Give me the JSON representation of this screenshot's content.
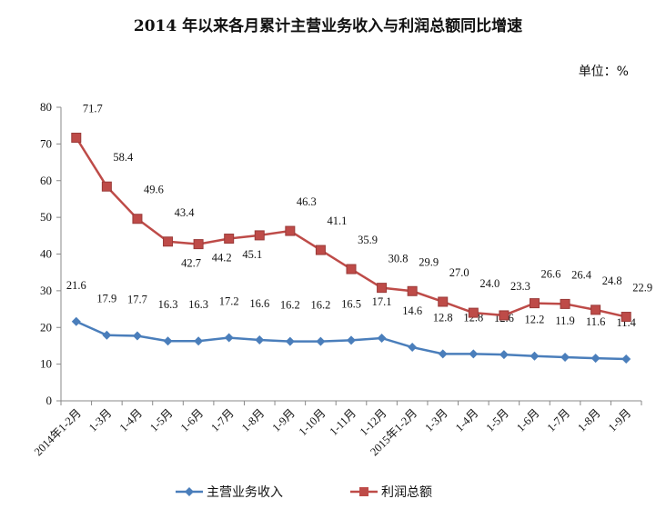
{
  "chart_data": {
    "type": "line",
    "title": "2014 年以来各月累计主营业务收入与利润总额同比增速",
    "unit_label": "单位：%",
    "categories": [
      "2014年1-2月",
      "1-3月",
      "1-4月",
      "1-5月",
      "1-6月",
      "1-7月",
      "1-8月",
      "1-9月",
      "1-10月",
      "1-11月",
      "1-12月",
      "2015年1-2月",
      "1-3月",
      "1-4月",
      "1-5月",
      "1-6月",
      "1-7月",
      "1-8月",
      "1-9月"
    ],
    "ylim": [
      0,
      80
    ],
    "yticks": [
      0,
      10,
      20,
      30,
      40,
      50,
      60,
      70,
      80
    ],
    "grid": false,
    "legend_position": "bottom",
    "series": [
      {
        "name": "主营业务收入",
        "color": "#4a7ebb",
        "marker": "diamond",
        "values": [
          21.6,
          17.9,
          17.7,
          16.3,
          16.3,
          17.2,
          16.6,
          16.2,
          16.2,
          16.5,
          17.1,
          14.6,
          12.8,
          12.8,
          12.6,
          12.2,
          11.9,
          11.6,
          11.4
        ]
      },
      {
        "name": "利润总额",
        "color": "#be4b48",
        "marker": "square",
        "values": [
          71.7,
          58.4,
          49.6,
          43.4,
          42.7,
          44.2,
          45.1,
          46.3,
          41.1,
          35.9,
          30.8,
          29.9,
          27.0,
          24.0,
          23.3,
          26.6,
          26.4,
          24.8,
          22.9
        ]
      }
    ]
  }
}
